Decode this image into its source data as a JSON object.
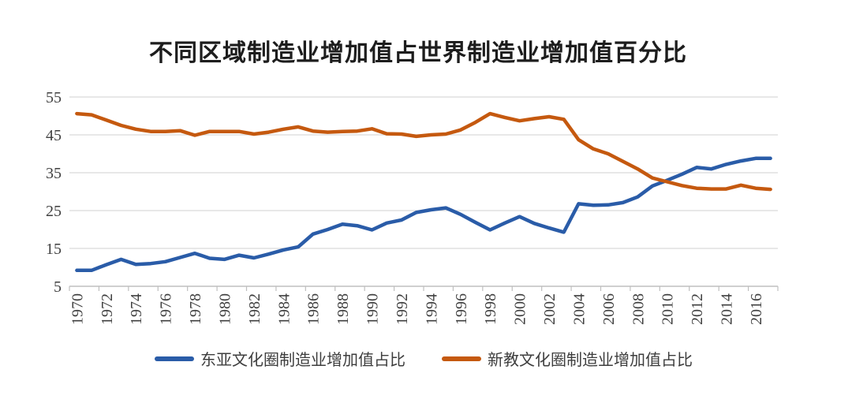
{
  "title_block": {
    "text": "不同区域制造业增加值占世界制造业增加值百分比"
  },
  "colors": {
    "east_asia_line": "#2a5ca8",
    "protestant_line": "#c5590f",
    "gridline": "#d9d9d9",
    "axis_line": "#bfbfbf",
    "tick_label": "#3f3f3f",
    "background": "#ffffff"
  },
  "chart_data": {
    "type": "line",
    "title": "不同区域制造业增加值占世界制造业增加值百分比",
    "xlabel": "",
    "ylabel": "",
    "ylim": [
      5,
      55
    ],
    "y_ticks": [
      5,
      15,
      25,
      35,
      45,
      55
    ],
    "grid": "horizontal",
    "legend_position": "bottom",
    "x": [
      1970,
      1971,
      1972,
      1973,
      1974,
      1975,
      1976,
      1977,
      1978,
      1979,
      1980,
      1981,
      1982,
      1983,
      1984,
      1985,
      1986,
      1987,
      1988,
      1989,
      1990,
      1991,
      1992,
      1993,
      1994,
      1995,
      1996,
      1997,
      1998,
      1999,
      2000,
      2001,
      2002,
      2003,
      2004,
      2005,
      2006,
      2007,
      2008,
      2009,
      2010,
      2011,
      2012,
      2013,
      2014,
      2015,
      2016,
      2017
    ],
    "x_tick_labels": [
      "1970",
      "1972",
      "1974",
      "1976",
      "1978",
      "1980",
      "1982",
      "1984",
      "1986",
      "1988",
      "1990",
      "1992",
      "1994",
      "1996",
      "1998",
      "2000",
      "2002",
      "2004",
      "2006",
      "2008",
      "2010",
      "2012",
      "2014",
      "2016"
    ],
    "series": [
      {
        "name": "东亚文化圈制造业增加值占比",
        "color": "#2a5ca8",
        "values": [
          9.2,
          9.2,
          10.7,
          12.1,
          10.8,
          11.0,
          11.5,
          12.6,
          13.7,
          12.4,
          12.1,
          13.2,
          12.5,
          13.5,
          14.6,
          15.4,
          18.8,
          20.0,
          21.4,
          21.0,
          19.9,
          21.7,
          22.5,
          24.5,
          25.2,
          25.7,
          24.0,
          21.9,
          19.9,
          21.7,
          23.4,
          21.6,
          20.4,
          19.3,
          26.8,
          26.4,
          26.5,
          27.1,
          28.6,
          31.5,
          33.0,
          34.6,
          36.4,
          36.0,
          37.2,
          38.1,
          38.8,
          38.8
        ]
      },
      {
        "name": "新教文化圈制造业增加值占比",
        "color": "#c5590f",
        "values": [
          50.6,
          50.3,
          48.9,
          47.5,
          46.5,
          45.9,
          45.9,
          46.1,
          44.9,
          45.9,
          45.9,
          45.9,
          45.2,
          45.7,
          46.5,
          47.1,
          46.0,
          45.7,
          45.9,
          46.0,
          46.6,
          45.3,
          45.2,
          44.6,
          45.0,
          45.2,
          46.3,
          48.3,
          50.6,
          49.6,
          48.7,
          49.3,
          49.8,
          49.1,
          43.7,
          41.3,
          40.0,
          38.0,
          36.0,
          33.6,
          32.6,
          31.6,
          30.9,
          30.7,
          30.7,
          31.7,
          30.9,
          30.6
        ]
      }
    ]
  }
}
